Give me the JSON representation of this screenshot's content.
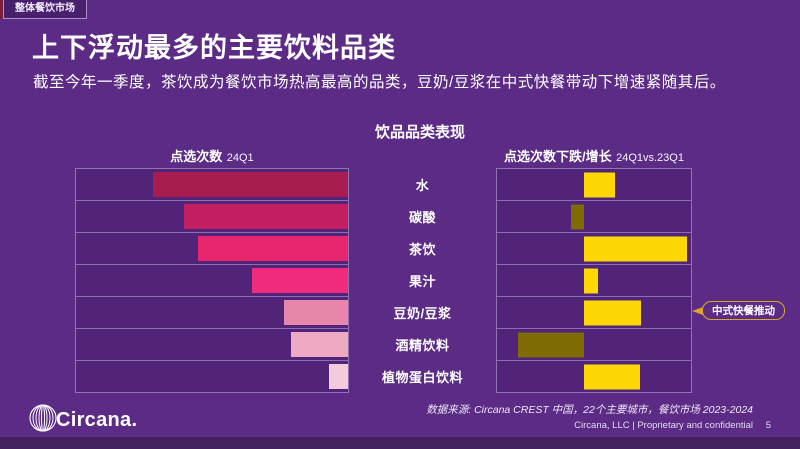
{
  "tag": "整体餐饮市场",
  "title": "上下浮动最多的主要饮料品类",
  "subtitle": "截至今年一季度，茶饮成为餐饮市场热高最高的品类，豆奶/豆浆在中式快餐带动下增速紧随其后。",
  "chart": {
    "section_title": "饮品品类表现",
    "left_header": {
      "label": "点选次数",
      "period": "24Q1"
    },
    "right_header": {
      "label": "点选次数下跌/增长",
      "period": "24Q1vs.23Q1"
    },
    "callout": "中式快餐推动"
  },
  "chart_data": {
    "type": "bar",
    "orientation": "horizontal",
    "title": "饮品品类表现",
    "categories": [
      "水",
      "碳酸",
      "茶饮",
      "果汁",
      "豆奶/豆浆",
      "酒精饮料",
      "植物蛋白饮料"
    ],
    "series": [
      {
        "name": "点选次数 24Q1",
        "panel": "left",
        "values_relative": [
          100,
          84,
          77,
          49,
          33,
          29,
          10
        ],
        "bar_colors": [
          "#a81d50",
          "#c21e60",
          "#e8256f",
          "#f02a7c",
          "#e885ab",
          "#f0a9c2",
          "#f3cbdc"
        ],
        "align": "right"
      },
      {
        "name": "点选次数下跌/增长 24Q1vs.23Q1",
        "panel": "right",
        "values_relative": [
          30,
          -13,
          100,
          14,
          55,
          -64,
          54
        ],
        "positive_color": "#fcd703",
        "negative_color": "#7f6b03",
        "baseline": "zero-diverging"
      }
    ],
    "legend": false,
    "grid": "row-dividers",
    "axis_tick_labels": "none",
    "annotation": {
      "text": "中式快餐推动",
      "target_category": "豆奶/豆浆"
    }
  },
  "footer": {
    "source": "数据来源: Circana CREST 中国，22个主要城市，餐饮市场 2023-2024",
    "legal": "Circana, LLC  |  Proprietary and confidential",
    "page": "5",
    "logo_text": "Circana."
  },
  "colors": {
    "background": "#5b2b86",
    "panel_border": "#beaade",
    "positive_bar": "#fcd703",
    "negative_bar": "#7f6b03",
    "callout_border": "#d9a827",
    "corner_accent": "#7c1f3f",
    "bottom_strip": "#44205f"
  }
}
